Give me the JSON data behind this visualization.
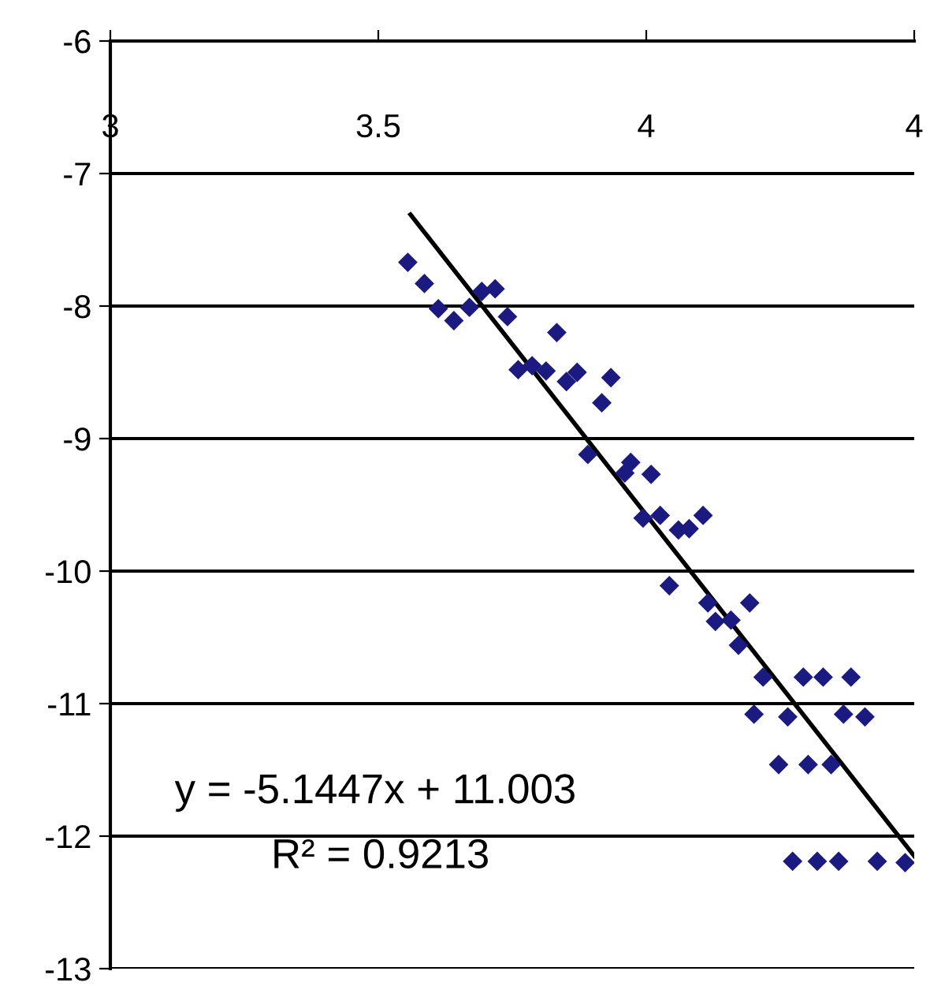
{
  "chart_data": {
    "type": "scatter",
    "xlim": [
      3,
      4.5
    ],
    "xticks": [
      3,
      3.5,
      4,
      {
        "value": 4.5,
        "label": "4"
      }
    ],
    "ylim": [
      -13,
      -6
    ],
    "yticks": [
      -13,
      -12,
      -11,
      -10,
      -9,
      -8,
      -7,
      -6
    ],
    "grid": "y",
    "legend": false,
    "annotations": [
      "y = -5.1447x + 11.003",
      "R² = 0.9213"
    ],
    "series": [
      {
        "marker": "diamond",
        "color": "#1a1a80",
        "x": [
          3.555,
          3.586,
          3.612,
          3.641,
          3.67,
          3.693,
          3.718,
          3.741,
          3.761,
          3.787,
          3.813,
          3.833,
          3.851,
          3.871,
          3.891,
          3.917,
          3.934,
          3.96,
          3.971,
          3.994,
          4.009,
          4.026,
          4.043,
          4.06,
          4.08,
          4.106,
          4.115,
          4.129,
          4.158,
          4.172,
          4.193,
          4.201,
          4.218,
          4.247,
          4.264,
          4.273,
          4.293,
          4.302,
          4.319,
          4.33,
          4.345,
          4.359,
          4.368,
          4.382,
          4.408,
          4.431,
          4.483
        ],
        "values": [
          -7.67,
          -7.83,
          -8.02,
          -8.11,
          -8.01,
          -7.89,
          -7.87,
          -8.08,
          -8.48,
          -8.45,
          -8.49,
          -8.2,
          -8.57,
          -8.5,
          -9.12,
          -8.73,
          -8.54,
          -9.26,
          -9.18,
          -9.6,
          -9.27,
          -9.58,
          -10.11,
          -9.69,
          -9.68,
          -9.58,
          -10.24,
          -10.38,
          -10.37,
          -10.56,
          -10.24,
          -11.08,
          -10.8,
          -11.46,
          -11.1,
          -12.19,
          -10.8,
          -11.46,
          -12.19,
          -10.8,
          -11.46,
          -12.19,
          -11.08,
          -10.8,
          -11.1,
          -12.19,
          -12.2
        ]
      },
      {
        "type": "line",
        "color": "#000000",
        "line_style": "solid",
        "marker": "none",
        "x": [
          3.56,
          4.5
        ],
        "values": [
          -7.31,
          -12.15
        ]
      }
    ]
  }
}
